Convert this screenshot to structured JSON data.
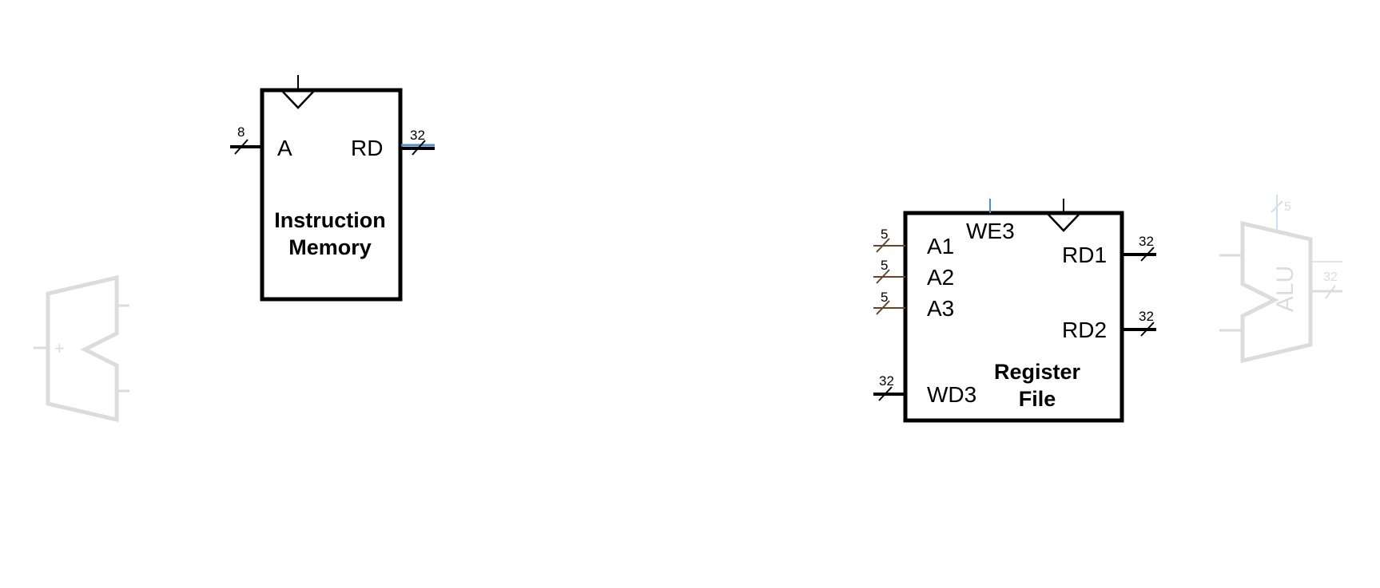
{
  "instruction_memory": {
    "title_line1": "Instruction",
    "title_line2": "Memory",
    "port_a": "A",
    "port_rd": "RD",
    "width_a": "8",
    "width_rd": "32"
  },
  "register_file": {
    "title_line1": "Register",
    "title_line2": "File",
    "port_we3": "WE3",
    "port_a1": "A1",
    "port_a2": "A2",
    "port_a3": "A3",
    "port_wd3": "WD3",
    "port_rd1": "RD1",
    "port_rd2": "RD2",
    "width_a1": "5",
    "width_a2": "5",
    "width_a3": "5",
    "width_wd3": "32",
    "width_rd1": "32",
    "width_rd2": "32"
  },
  "adder_ghost": {
    "symbol": "+"
  },
  "alu_ghost": {
    "label": "ALU",
    "width_control": "5",
    "width_out": "32"
  },
  "colors": {
    "wire": "#000000",
    "address_wire": "#6b4226",
    "enable_wire": "#4a8fc7",
    "ghost": "#dcdcdc"
  }
}
